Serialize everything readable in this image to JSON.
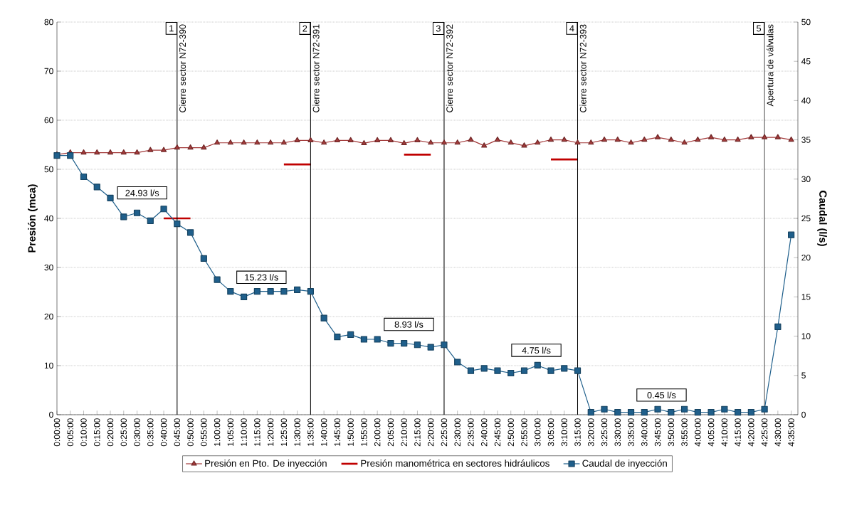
{
  "chart_data": {
    "type": "line",
    "categories": [
      "0:00:00",
      "0:05:00",
      "0:10:00",
      "0:15:00",
      "0:20:00",
      "0:25:00",
      "0:30:00",
      "0:35:00",
      "0:40:00",
      "0:45:00",
      "0:50:00",
      "0:55:00",
      "1:00:00",
      "1:05:00",
      "1:10:00",
      "1:15:00",
      "1:20:00",
      "1:25:00",
      "1:30:00",
      "1:35:00",
      "1:40:00",
      "1:45:00",
      "1:50:00",
      "1:55:00",
      "2:00:00",
      "2:05:00",
      "2:10:00",
      "2:15:00",
      "2:20:00",
      "2:25:00",
      "2:30:00",
      "2:35:00",
      "2:40:00",
      "2:45:00",
      "2:50:00",
      "2:55:00",
      "3:00:00",
      "3:05:00",
      "3:10:00",
      "3:15:00",
      "3:20:00",
      "3:25:00",
      "3:30:00",
      "3:35:00",
      "3:40:00",
      "3:45:00",
      "3:50:00",
      "3:55:00",
      "4:00:00",
      "4:05:00",
      "4:10:00",
      "4:15:00",
      "4:20:00",
      "4:25:00",
      "4:30:00",
      "4:35:00"
    ],
    "series": [
      {
        "name": "Presión en Pto. De inyección",
        "color": "#a33a3a",
        "marker": "triangle",
        "values": [
          53.0,
          53.4,
          53.4,
          53.4,
          53.4,
          53.4,
          53.4,
          53.9,
          53.9,
          54.4,
          54.4,
          54.4,
          55.4,
          55.4,
          55.4,
          55.4,
          55.4,
          55.4,
          55.9,
          55.9,
          55.4,
          55.9,
          55.9,
          55.3,
          55.9,
          55.9,
          55.3,
          55.9,
          55.4,
          55.4,
          55.4,
          56.0,
          54.8,
          56.0,
          55.4,
          54.8,
          55.4,
          56.0,
          56.0,
          55.4,
          55.4,
          56.0,
          56.0,
          55.4,
          56.0,
          56.5,
          56.0,
          55.4,
          56.0,
          56.5,
          56.0,
          56.0,
          56.5,
          56.5,
          56.5,
          56.0
        ]
      },
      {
        "name": "Presión manométrica en sectores hidráulicos",
        "color": "#c00000",
        "marker": "none",
        "values": [
          null,
          null,
          null,
          null,
          null,
          null,
          null,
          null,
          40,
          40,
          40,
          null,
          null,
          null,
          null,
          null,
          null,
          51,
          51,
          51,
          null,
          null,
          null,
          null,
          null,
          null,
          53,
          53,
          53,
          null,
          null,
          null,
          null,
          null,
          null,
          null,
          null,
          52,
          52,
          52,
          null,
          null,
          null,
          null,
          null,
          null,
          null,
          null,
          null,
          null,
          null,
          null,
          null,
          null,
          null,
          null
        ]
      },
      {
        "name": "Caudal de inyección",
        "color": "#1f5f8b",
        "marker": "square",
        "axis": "y2",
        "values": [
          33.0,
          33.0,
          30.3,
          29.0,
          27.6,
          25.2,
          25.7,
          24.7,
          26.2,
          24.3,
          23.2,
          19.9,
          17.2,
          15.7,
          15.0,
          15.7,
          15.7,
          15.7,
          15.9,
          15.7,
          12.3,
          9.9,
          10.2,
          9.6,
          9.6,
          9.1,
          9.1,
          8.9,
          8.6,
          8.9,
          6.7,
          5.6,
          5.9,
          5.6,
          5.3,
          5.6,
          6.3,
          5.6,
          5.9,
          5.6,
          0.3,
          0.7,
          0.3,
          0.3,
          0.3,
          0.7,
          0.3,
          0.7,
          0.3,
          0.3,
          0.7,
          0.3,
          0.3,
          0.7,
          11.2,
          22.9
        ]
      }
    ],
    "ylabel": "Presión (mca)",
    "y2label": "Caudal (l/s)",
    "ylim": [
      0,
      80
    ],
    "yticks": [
      0,
      10,
      20,
      30,
      40,
      50,
      60,
      70,
      80
    ],
    "y2lim": [
      0,
      50
    ],
    "y2ticks": [
      0,
      5,
      10,
      15,
      20,
      25,
      30,
      35,
      40,
      45,
      50
    ],
    "grid": "y",
    "legend": "bottom",
    "ref_lines": [
      {
        "axis": "x",
        "value": "0:45:00",
        "label": "Cierre sector N72-390"
      },
      {
        "axis": "x",
        "value": "1:35:00",
        "label": "Cierre sector N72-391"
      },
      {
        "axis": "x",
        "value": "2:25:00",
        "label": "Cierre sector N72-392"
      },
      {
        "axis": "x",
        "value": "3:15:00",
        "label": "Cierre sector N72-393"
      },
      {
        "axis": "x",
        "value": "4:25:00",
        "label": "Apertura de válvulas"
      }
    ],
    "annotations": [
      {
        "text": "1",
        "x": "0:45:00",
        "y": 80
      },
      {
        "text": "2",
        "x": "1:35:00",
        "y": 80
      },
      {
        "text": "3",
        "x": "2:25:00",
        "y": 80
      },
      {
        "text": "4",
        "x": "3:15:00",
        "y": 80
      },
      {
        "text": "5",
        "x": "4:25:00",
        "y": 80
      },
      "24.93 l/s",
      "15.23 l/s",
      "8.93 l/s",
      "4.75 l/s",
      "0.45 l/s"
    ]
  }
}
